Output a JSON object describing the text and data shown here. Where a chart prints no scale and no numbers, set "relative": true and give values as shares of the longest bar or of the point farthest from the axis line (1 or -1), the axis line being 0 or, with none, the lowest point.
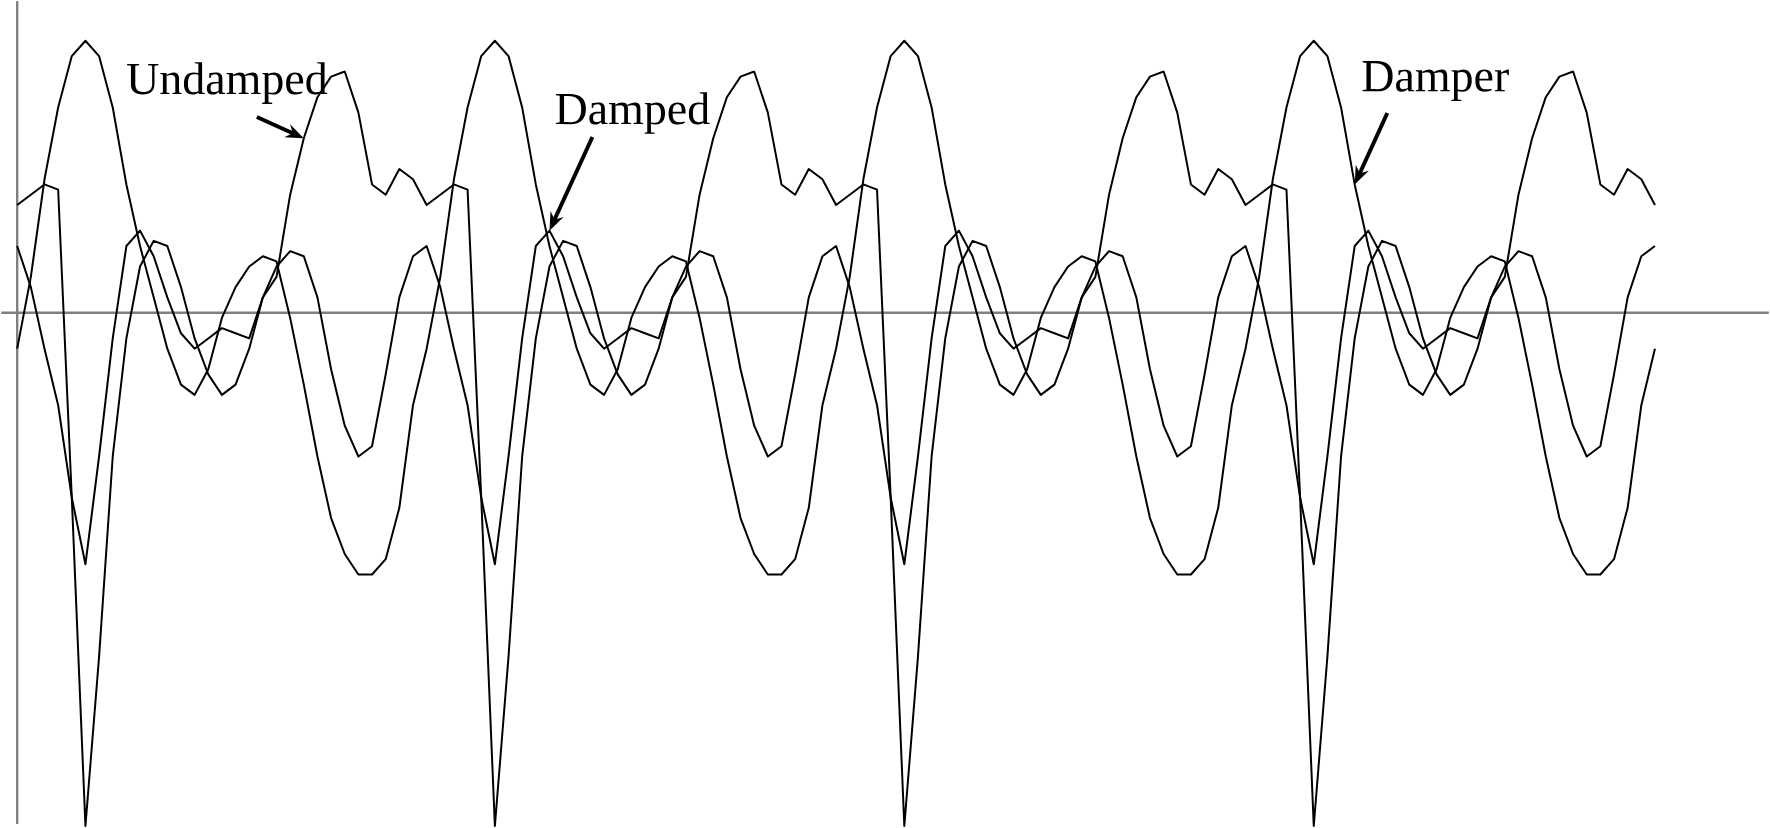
{
  "chart_data": {
    "type": "line",
    "relative": true,
    "line_style": "solid",
    "categories": [
      null,
      null,
      null,
      null,
      null,
      null,
      null,
      null,
      null,
      null,
      null,
      null,
      null,
      null,
      null,
      null,
      null,
      null,
      null,
      null,
      null,
      null,
      null,
      null,
      null,
      null,
      null,
      null,
      null,
      null,
      null,
      null,
      null,
      null,
      null,
      null,
      null,
      null,
      null,
      null,
      null,
      null,
      null,
      null,
      null,
      null,
      null,
      null,
      null,
      null,
      null,
      null,
      null,
      null,
      null,
      null,
      null,
      null,
      null,
      null,
      null,
      null,
      null,
      null,
      null,
      null,
      null,
      null,
      null,
      null,
      null,
      null,
      null,
      null,
      null,
      null,
      null,
      null,
      null,
      null,
      null,
      null,
      null,
      null,
      null,
      null,
      null,
      null,
      null,
      null,
      null,
      null,
      null,
      null,
      null,
      null,
      null,
      null,
      null,
      null,
      null,
      null,
      null,
      null,
      null,
      null,
      null,
      null,
      null,
      null,
      null,
      null,
      null,
      null,
      null,
      null,
      null,
      null,
      null,
      null,
      null
    ],
    "series": [
      {
        "name": "Undamped",
        "color": "#000000",
        "values": [
          0.21,
          0.23,
          0.25,
          0.24,
          -0.36,
          -1,
          -0.67,
          -0.28,
          -0.05,
          0.09,
          0.14,
          0.13,
          0.05,
          -0.05,
          -0.12,
          -0.16,
          -0.14,
          -0.07,
          0.03,
          0.07,
          0.23,
          0.34,
          0.42,
          0.46,
          0.47,
          0.39,
          0.25,
          0.23,
          0.28,
          0.26,
          0.21,
          0.23,
          0.25,
          0.24,
          -0.36,
          -1,
          -0.67,
          -0.28,
          -0.05,
          0.09,
          0.14,
          0.13,
          0.05,
          -0.05,
          -0.12,
          -0.16,
          -0.14,
          -0.07,
          0.03,
          0.07,
          0.23,
          0.34,
          0.42,
          0.46,
          0.47,
          0.39,
          0.25,
          0.23,
          0.28,
          0.26,
          0.21,
          0.23,
          0.25,
          0.24,
          -0.36,
          -1,
          -0.67,
          -0.28,
          -0.05,
          0.09,
          0.14,
          0.13,
          0.05,
          -0.05,
          -0.12,
          -0.16,
          -0.14,
          -0.07,
          0.03,
          0.07,
          0.23,
          0.34,
          0.42,
          0.46,
          0.47,
          0.39,
          0.25,
          0.23,
          0.28,
          0.26,
          0.21,
          0.23,
          0.25,
          0.24,
          -0.36,
          -1,
          -0.67,
          -0.28,
          -0.05,
          0.09,
          0.14,
          0.13,
          0.05,
          -0.05,
          -0.12,
          -0.16,
          -0.14,
          -0.07,
          0.03,
          0.07,
          0.23,
          0.34,
          0.42,
          0.46,
          0.47,
          0.39,
          0.25,
          0.23,
          0.28,
          0.26,
          0.21
        ]
      },
      {
        "name": "Damped",
        "color": "#000000",
        "values": [
          0.13,
          0.05,
          -0.07,
          -0.18,
          -0.36,
          -0.49,
          -0.28,
          -0.05,
          0.13,
          0.16,
          0.11,
          0.03,
          -0.04,
          -0.07,
          -0.05,
          -0.03,
          -0.04,
          -0.05,
          0.03,
          0.09,
          0.12,
          0.11,
          0.03,
          -0.11,
          -0.22,
          -0.28,
          -0.26,
          -0.12,
          0.03,
          0.11,
          0.13,
          0.05,
          -0.07,
          -0.18,
          -0.36,
          -0.49,
          -0.28,
          -0.05,
          0.13,
          0.16,
          0.11,
          0.03,
          -0.04,
          -0.07,
          -0.05,
          -0.03,
          -0.04,
          -0.05,
          0.03,
          0.09,
          0.12,
          0.11,
          0.03,
          -0.11,
          -0.22,
          -0.28,
          -0.26,
          -0.12,
          0.03,
          0.11,
          0.13,
          0.05,
          -0.07,
          -0.18,
          -0.36,
          -0.49,
          -0.28,
          -0.05,
          0.13,
          0.16,
          0.11,
          0.03,
          -0.04,
          -0.07,
          -0.05,
          -0.03,
          -0.04,
          -0.05,
          0.03,
          0.09,
          0.12,
          0.11,
          0.03,
          -0.11,
          -0.22,
          -0.28,
          -0.26,
          -0.12,
          0.03,
          0.11,
          0.13,
          0.05,
          -0.07,
          -0.18,
          -0.36,
          -0.49,
          -0.28,
          -0.05,
          0.13,
          0.16,
          0.11,
          0.03,
          -0.04,
          -0.07,
          -0.05,
          -0.03,
          -0.04,
          -0.05,
          0.03,
          0.09,
          0.12,
          0.11,
          0.03,
          -0.11,
          -0.22,
          -0.28,
          -0.26,
          -0.12,
          0.03,
          0.11,
          0.13
        ]
      },
      {
        "name": "Damper",
        "color": "#000000",
        "values": [
          -0.07,
          0.07,
          0.26,
          0.4,
          0.5,
          0.53,
          0.5,
          0.4,
          0.25,
          0.13,
          0.03,
          -0.07,
          -0.14,
          -0.16,
          -0.11,
          -0.01,
          0.05,
          0.09,
          0.11,
          0.1,
          -0.01,
          -0.14,
          -0.28,
          -0.4,
          -0.47,
          -0.51,
          -0.51,
          -0.48,
          -0.38,
          -0.18,
          -0.07,
          0.07,
          0.26,
          0.4,
          0.5,
          0.53,
          0.5,
          0.4,
          0.25,
          0.13,
          0.03,
          -0.07,
          -0.14,
          -0.16,
          -0.11,
          -0.01,
          0.05,
          0.09,
          0.11,
          0.1,
          -0.01,
          -0.14,
          -0.28,
          -0.4,
          -0.47,
          -0.51,
          -0.51,
          -0.48,
          -0.38,
          -0.18,
          -0.07,
          0.07,
          0.26,
          0.4,
          0.5,
          0.53,
          0.5,
          0.4,
          0.25,
          0.13,
          0.03,
          -0.07,
          -0.14,
          -0.16,
          -0.11,
          -0.01,
          0.05,
          0.09,
          0.11,
          0.1,
          -0.01,
          -0.14,
          -0.28,
          -0.4,
          -0.47,
          -0.51,
          -0.51,
          -0.48,
          -0.38,
          -0.18,
          -0.07,
          0.07,
          0.26,
          0.4,
          0.5,
          0.53,
          0.5,
          0.4,
          0.25,
          0.13,
          0.03,
          -0.07,
          -0.14,
          -0.16,
          -0.11,
          -0.01,
          0.05,
          0.09,
          0.11,
          0.1,
          -0.01,
          -0.14,
          -0.28,
          -0.4,
          -0.47,
          -0.51,
          -0.51,
          -0.48,
          -0.38,
          -0.18,
          -0.07
        ]
      }
    ]
  }
}
